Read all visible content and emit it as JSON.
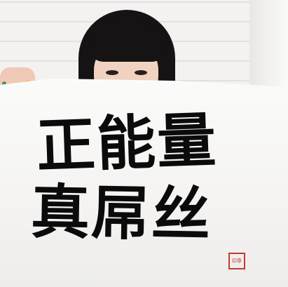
{
  "photo": {
    "calligraphy_line_1": "正能量",
    "calligraphy_line_2": "真屌丝",
    "seal_text": "印章"
  },
  "colors": {
    "ink": "#0b0b0b",
    "paper": "#f7f6f4",
    "hair": "#151314",
    "skin": "#f1d2c0",
    "seal": "#c43b33",
    "nail_pink": "#e04a78",
    "nail_green": "#4a9a57",
    "nail_yellow": "#e3c63a",
    "nail_blue": "#3b6fbf"
  }
}
